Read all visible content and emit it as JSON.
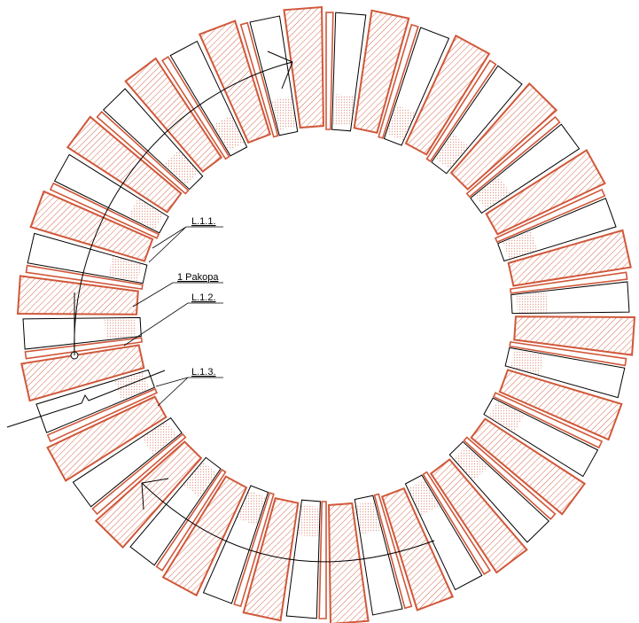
{
  "labels": {
    "l11": "L.1.1.",
    "pakopa": "1 Pakopa",
    "l12": "L.1.2.",
    "l13": "L.1.3."
  },
  "colors": {
    "hatch": "#d0583a",
    "outline": "#d0583a",
    "line": "#000000"
  }
}
